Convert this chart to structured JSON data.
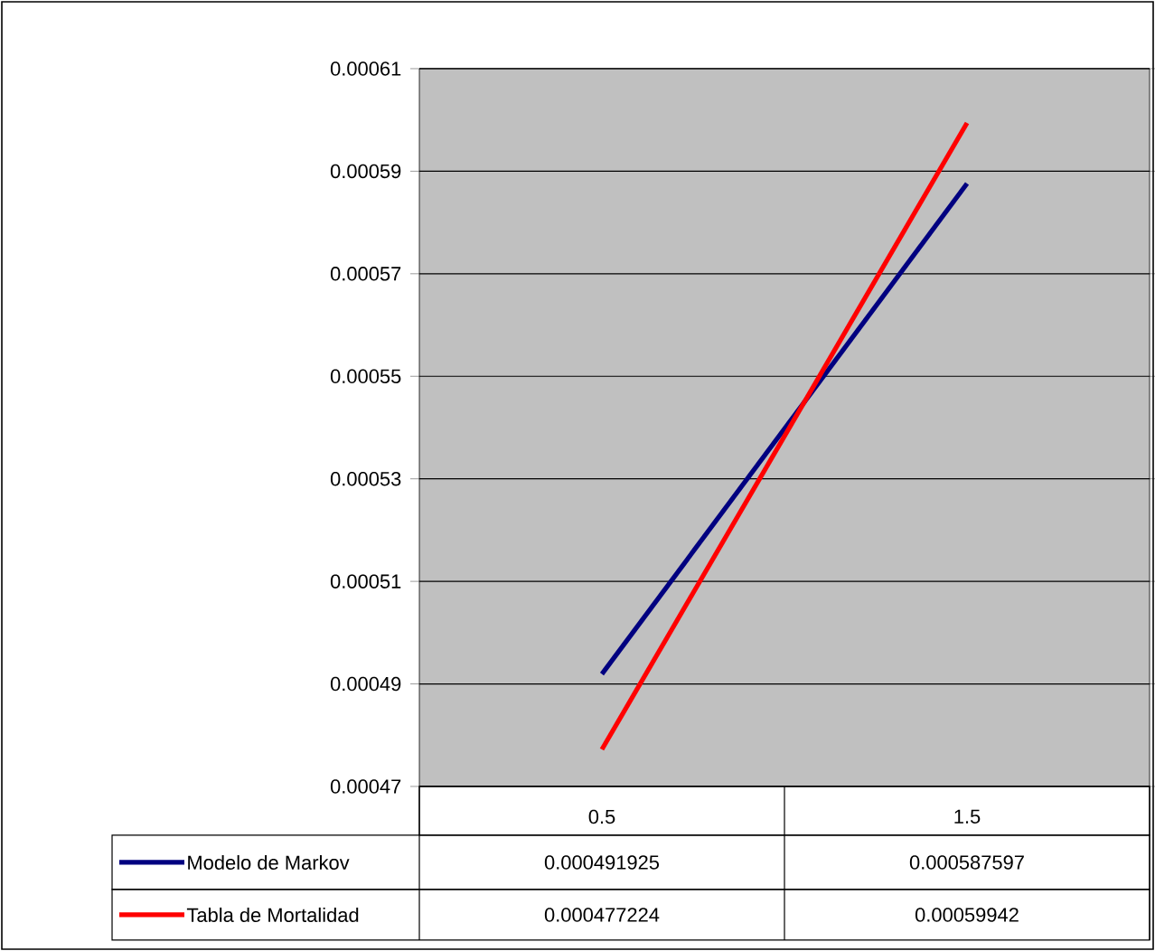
{
  "chart_data": {
    "type": "line",
    "categories": [
      "0.5",
      "1.5"
    ],
    "series": [
      {
        "name": "Modelo de Markov",
        "color": "#000080",
        "values": [
          0.000491925,
          0.000587597
        ]
      },
      {
        "name": "Tabla de Mortalidad",
        "color": "#ff0000",
        "values": [
          0.000477224,
          0.00059942
        ]
      }
    ],
    "ylim": [
      0.00047,
      0.00061
    ],
    "yticks": [
      0.00047,
      0.00049,
      0.00051,
      0.00053,
      0.00055,
      0.00057,
      0.00059,
      0.00061
    ],
    "grid": "y",
    "legend": "bottom",
    "data_labels": true,
    "marker": "none",
    "line_style": "solid"
  }
}
